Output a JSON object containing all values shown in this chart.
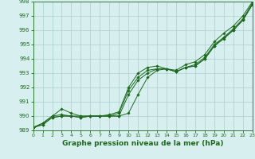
{
  "x": [
    0,
    1,
    2,
    3,
    4,
    5,
    6,
    7,
    8,
    9,
    10,
    11,
    12,
    13,
    14,
    15,
    16,
    17,
    18,
    19,
    20,
    21,
    22,
    23
  ],
  "line1": [
    989.2,
    989.4,
    989.9,
    990.0,
    990.0,
    989.9,
    990.0,
    990.0,
    990.0,
    990.0,
    990.2,
    991.5,
    992.7,
    993.2,
    993.3,
    993.1,
    993.4,
    993.5,
    994.0,
    994.9,
    995.4,
    996.0,
    996.7,
    997.8
  ],
  "line2": [
    989.2,
    989.4,
    989.9,
    990.0,
    990.0,
    989.9,
    990.0,
    990.0,
    990.0,
    990.0,
    991.5,
    992.5,
    993.0,
    993.3,
    993.3,
    993.1,
    993.4,
    993.5,
    994.0,
    994.9,
    995.5,
    996.0,
    996.7,
    997.8
  ],
  "line3": [
    989.2,
    989.5,
    990.0,
    990.1,
    990.0,
    990.0,
    990.0,
    990.0,
    990.0,
    990.2,
    991.8,
    992.7,
    993.2,
    993.3,
    993.3,
    993.1,
    993.4,
    993.6,
    994.1,
    995.0,
    995.5,
    996.1,
    996.8,
    997.9
  ],
  "line4": [
    989.2,
    989.5,
    990.0,
    990.5,
    990.2,
    990.0,
    990.0,
    990.0,
    990.1,
    990.3,
    992.0,
    993.0,
    993.4,
    993.5,
    993.3,
    993.2,
    993.6,
    993.8,
    994.3,
    995.2,
    995.8,
    996.3,
    997.0,
    998.0
  ],
  "ylim": [
    989,
    998
  ],
  "xlim": [
    0,
    23
  ],
  "yticks": [
    989,
    990,
    991,
    992,
    993,
    994,
    995,
    996,
    997,
    998
  ],
  "xticks": [
    0,
    1,
    2,
    3,
    4,
    5,
    6,
    7,
    8,
    9,
    10,
    11,
    12,
    13,
    14,
    15,
    16,
    17,
    18,
    19,
    20,
    21,
    22,
    23
  ],
  "line_color": "#1a6b1a",
  "bg_color": "#d8eff0",
  "grid_color": "#aacfcf",
  "xlabel": "Graphe pression niveau de la mer (hPa)",
  "xlabel_fontsize": 6.5,
  "marker": "D",
  "marker_size": 1.8,
  "linewidth": 0.7
}
